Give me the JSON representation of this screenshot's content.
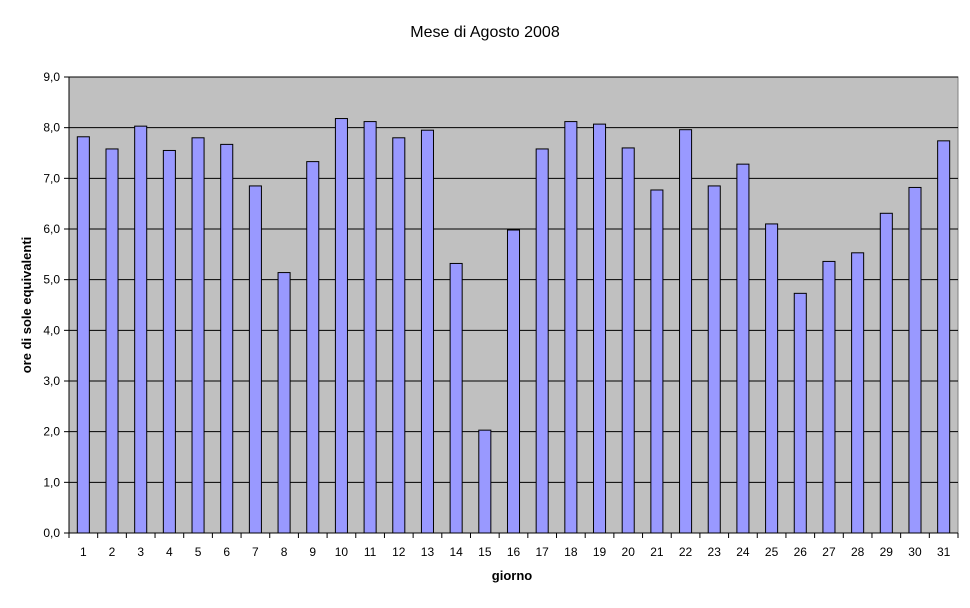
{
  "chart_data": {
    "type": "bar",
    "title": "Mese di Agosto 2008",
    "xlabel": "giorno",
    "ylabel": "ore di sole equivalenti",
    "ylim": [
      0,
      9
    ],
    "ytick_step": 1,
    "ytick_labels": [
      "0,0",
      "1,0",
      "2,0",
      "3,0",
      "4,0",
      "5,0",
      "6,0",
      "7,0",
      "8,0",
      "9,0"
    ],
    "grid": true,
    "legend": "none",
    "colors": {
      "bar_fill": "#9999ff",
      "bar_stroke": "#000000",
      "plot_bg": "#c0c0c0",
      "gridline": "#000000"
    },
    "categories": [
      "1",
      "2",
      "3",
      "4",
      "5",
      "6",
      "7",
      "8",
      "9",
      "10",
      "11",
      "12",
      "13",
      "14",
      "15",
      "16",
      "17",
      "18",
      "19",
      "20",
      "21",
      "22",
      "23",
      "24",
      "25",
      "26",
      "27",
      "28",
      "29",
      "30",
      "31"
    ],
    "values": [
      7.82,
      7.58,
      8.03,
      7.55,
      7.8,
      7.67,
      6.85,
      5.14,
      7.33,
      8.18,
      8.12,
      7.8,
      7.95,
      5.32,
      2.03,
      5.98,
      7.58,
      8.12,
      8.07,
      7.6,
      6.77,
      7.96,
      6.85,
      7.28,
      6.1,
      4.73,
      5.36,
      5.53,
      6.31,
      6.82,
      7.74
    ]
  }
}
